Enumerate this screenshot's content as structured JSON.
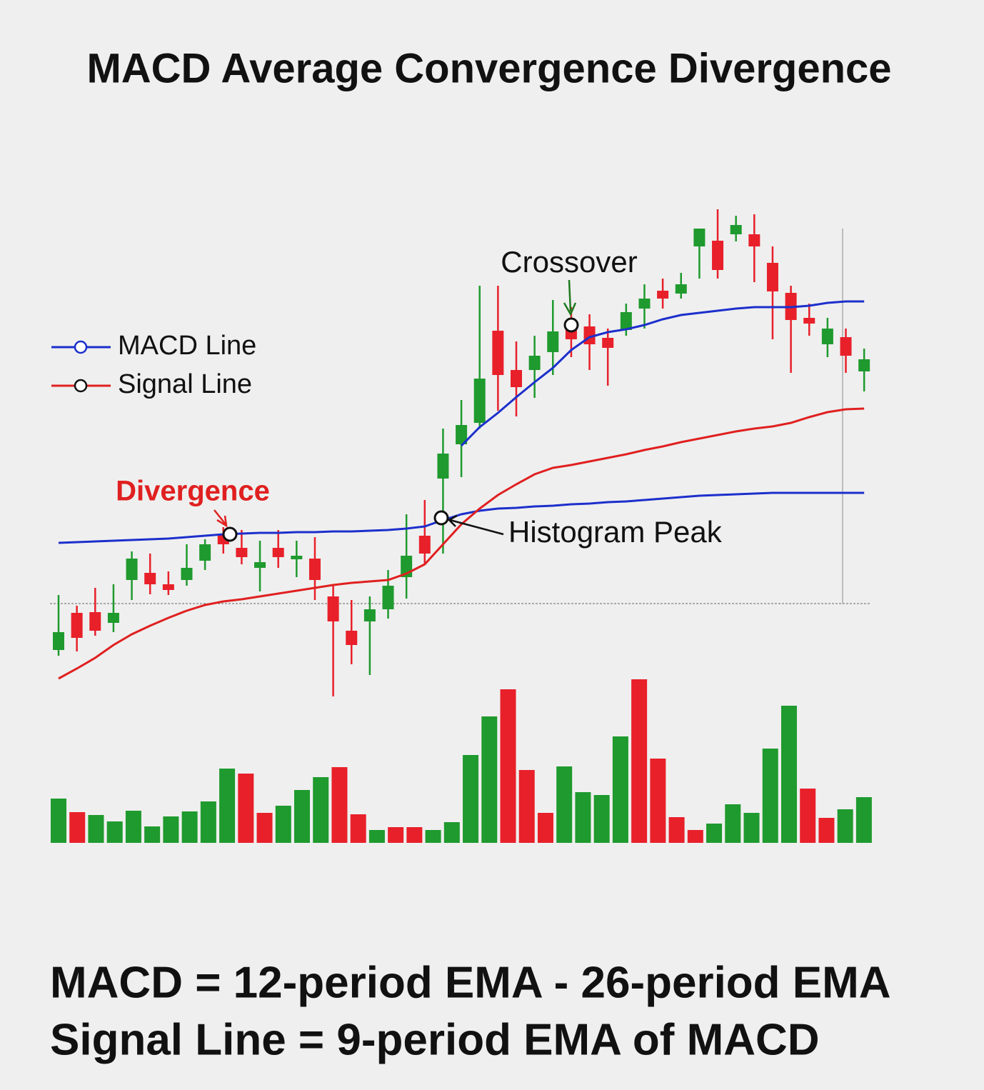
{
  "chart_data": [
    {
      "type": "candlestick",
      "title": "MACD Average Convergence Divergence",
      "annotations": [
        "Crossover",
        "Divergence",
        "Histogram Peak"
      ],
      "categories": [
        null,
        null,
        null,
        null,
        null,
        null,
        null,
        null,
        null,
        null,
        null,
        null,
        null,
        null,
        null,
        null,
        null,
        null,
        null,
        null,
        null,
        null,
        null,
        null,
        null,
        null,
        null,
        null,
        null,
        null,
        null,
        null,
        null,
        null,
        null,
        null,
        null,
        null,
        null,
        null,
        null,
        null,
        null,
        null,
        null
      ],
      "open": [
        7.0,
        12.2,
        12.3,
        10.8,
        16.8,
        17.8,
        16.2,
        16.8,
        19.5,
        23.2,
        21.3,
        18.5,
        21.3,
        19.7,
        19.8,
        14.5,
        9.7,
        11.0,
        12.7,
        17.2,
        23.0,
        31.0,
        35.8,
        38.8,
        51.7,
        46.2,
        46.2,
        48.7,
        52.3,
        52.3,
        50.7,
        51.8,
        54.8,
        57.3,
        56.9,
        63.5,
        64.3,
        65.2,
        65.2,
        61.2,
        57.0,
        53.5,
        49.8,
        50.8,
        46.0
      ],
      "high": [
        14.7,
        13.2,
        15.7,
        16.2,
        20.8,
        20.5,
        18.0,
        21.8,
        22.5,
        24.2,
        23.8,
        22.3,
        23.8,
        22.3,
        22.8,
        16.0,
        14.0,
        14.5,
        18.2,
        26.0,
        28.0,
        38.0,
        42.0,
        58.0,
        58.0,
        50.2,
        51.0,
        56.0,
        55.0,
        54.0,
        52.0,
        55.5,
        58.2,
        59.0,
        59.8,
        66.0,
        68.7,
        67.8,
        68.0,
        63.5,
        58.0,
        55.5,
        53.5,
        52.0,
        49.2
      ],
      "low": [
        6.2,
        6.8,
        9.0,
        9.5,
        14.0,
        14.8,
        14.7,
        16.0,
        18.2,
        20.5,
        19.0,
        15.2,
        18.5,
        17.2,
        14.0,
        0.5,
        5.0,
        3.5,
        11.4,
        14.2,
        19.0,
        20.5,
        31.2,
        38.0,
        40.5,
        39.7,
        42.3,
        45.5,
        48.0,
        46.2,
        44.0,
        51.0,
        52.0,
        54.8,
        56.2,
        59.0,
        59.0,
        64.2,
        58.5,
        50.5,
        45.8,
        51.0,
        48.0,
        45.8,
        43.2
      ],
      "close": [
        9.5,
        8.7,
        9.7,
        12.2,
        19.8,
        16.2,
        15.4,
        18.5,
        21.8,
        21.8,
        20.0,
        19.3,
        20.0,
        20.2,
        16.8,
        11.0,
        7.7,
        12.7,
        16.0,
        20.2,
        20.5,
        34.5,
        38.5,
        45.0,
        45.5,
        43.8,
        48.2,
        51.6,
        50.5,
        49.8,
        49.3,
        54.3,
        56.2,
        56.2,
        58.2,
        66.0,
        60.2,
        66.5,
        63.5,
        57.2,
        53.2,
        52.7,
        52.0,
        48.2,
        47.7
      ],
      "up_color": "#1f9a2e",
      "down_color": "#e8202a",
      "series": [
        {
          "name": "MACD Line",
          "color": "#1c2fcc",
          "values": [
            22.0,
            22.1,
            22.2,
            22.3,
            22.4,
            22.5,
            22.6,
            22.8,
            23.0,
            23.2,
            23.3,
            23.4,
            23.4,
            23.5,
            23.5,
            23.6,
            23.6,
            23.7,
            23.8,
            24.0,
            24.3,
            25.2,
            26.0,
            26.5,
            26.8,
            26.9,
            27.1,
            27.2,
            27.4,
            27.5,
            27.7,
            27.8,
            28.0,
            28.2,
            28.4,
            28.6,
            28.7,
            28.8,
            28.9,
            29.0,
            29.0,
            29.0,
            29.0,
            29.0,
            29.0
          ]
        },
        {
          "name": "Signal Line",
          "color": "#e02020",
          "values": [
            3.0,
            4.4,
            5.9,
            7.7,
            9.2,
            10.4,
            11.5,
            12.5,
            13.3,
            13.8,
            14.1,
            14.5,
            14.9,
            15.3,
            15.7,
            16.1,
            16.4,
            16.6,
            16.8,
            17.7,
            19.0,
            21.8,
            24.6,
            26.8,
            28.7,
            30.2,
            31.6,
            32.5,
            32.9,
            33.4,
            33.9,
            34.4,
            35.0,
            35.5,
            36.1,
            36.6,
            37.1,
            37.6,
            38.0,
            38.3,
            38.8,
            39.6,
            40.3,
            40.7,
            40.8
          ]
        },
        {
          "color": "#1c2fcc",
          "values": [
            null,
            null,
            null,
            null,
            null,
            null,
            null,
            null,
            null,
            null,
            null,
            null,
            null,
            null,
            null,
            null,
            null,
            null,
            null,
            null,
            null,
            null,
            35.6,
            38.2,
            40.2,
            42.4,
            44.5,
            46.5,
            49.0,
            50.8,
            51.5,
            51.9,
            52.5,
            53.3,
            53.9,
            54.2,
            54.5,
            54.8,
            55.0,
            55.0,
            55.0,
            55.2,
            55.6,
            55.8,
            55.8
          ]
        }
      ],
      "ylim": [
        0,
        69
      ]
    },
    {
      "type": "bar",
      "categories": [
        null,
        null,
        null,
        null,
        null,
        null,
        null,
        null,
        null,
        null,
        null,
        null,
        null,
        null,
        null,
        null,
        null,
        null,
        null,
        null,
        null,
        null,
        null,
        null,
        null,
        null,
        null,
        null,
        null,
        null,
        null,
        null,
        null,
        null,
        null,
        null,
        null,
        null,
        null,
        null,
        null,
        null,
        null,
        null
      ],
      "values": [
        6.2,
        4.3,
        3.9,
        3.0,
        4.5,
        2.3,
        3.7,
        4.4,
        5.8,
        10.4,
        9.7,
        4.2,
        5.2,
        7.4,
        9.2,
        10.6,
        4.0,
        1.8,
        2.2,
        2.2,
        1.8,
        2.9,
        12.3,
        17.7,
        21.5,
        10.2,
        4.2,
        10.7,
        7.1,
        6.7,
        14.9,
        22.9,
        11.8,
        3.6,
        1.8,
        2.7,
        5.4,
        4.2,
        13.2,
        19.2,
        7.6,
        3.5,
        4.7,
        6.4
      ],
      "colors": [
        "#1f9a2e",
        "#e8202a",
        "#1f9a2e",
        "#1f9a2e",
        "#1f9a2e",
        "#1f9a2e",
        "#1f9a2e",
        "#1f9a2e",
        "#1f9a2e",
        "#1f9a2e",
        "#e8202a",
        "#e8202a",
        "#1f9a2e",
        "#1f9a2e",
        "#1f9a2e",
        "#e8202a",
        "#e8202a",
        "#1f9a2e",
        "#e8202a",
        "#e8202a",
        "#1f9a2e",
        "#1f9a2e",
        "#1f9a2e",
        "#1f9a2e",
        "#e8202a",
        "#e8202a",
        "#e8202a",
        "#1f9a2e",
        "#1f9a2e",
        "#1f9a2e",
        "#1f9a2e",
        "#e8202a",
        "#e8202a",
        "#e8202a",
        "#e8202a",
        "#1f9a2e",
        "#1f9a2e",
        "#1f9a2e",
        "#1f9a2e",
        "#1f9a2e",
        "#e8202a",
        "#e8202a",
        "#1f9a2e",
        "#1f9a2e"
      ],
      "ylim": [
        0,
        25
      ]
    }
  ],
  "formulas": [
    "MACD = 12-period EMA - 26-period EMA",
    "Signal Line = 9-period EMA of MACD"
  ]
}
